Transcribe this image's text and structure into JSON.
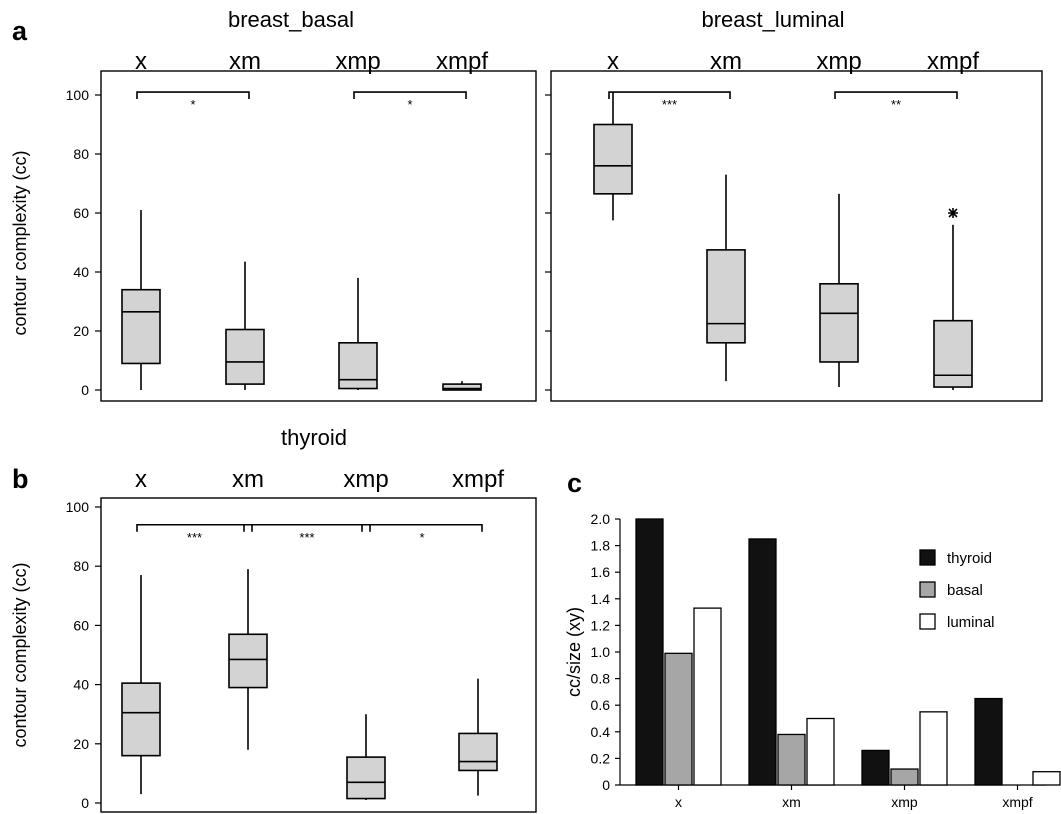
{
  "panels": {
    "a": {
      "letter": "a"
    },
    "b": {
      "letter": "b"
    },
    "c": {
      "letter": "c"
    }
  },
  "chart_data": [
    {
      "type": "box",
      "panel": "a",
      "title": "breast_basal",
      "categories": [
        "x",
        "xm",
        "xmp",
        "xmpf"
      ],
      "ylabel": "contour complexity (cc)",
      "ylim": [
        0,
        100
      ],
      "yticks": [
        0,
        20,
        40,
        60,
        80,
        100
      ],
      "boxes": [
        {
          "min": 0,
          "q1": 9,
          "median": 26.5,
          "q3": 34,
          "max": 61,
          "outliers": []
        },
        {
          "min": 0,
          "q1": 2,
          "median": 9.5,
          "q3": 20.5,
          "max": 43.5,
          "outliers": []
        },
        {
          "min": 0,
          "q1": 0.5,
          "median": 3.5,
          "q3": 16,
          "max": 38,
          "outliers": []
        },
        {
          "min": 0,
          "q1": 0,
          "median": 0.5,
          "q3": 2,
          "max": 3,
          "outliers": []
        }
      ],
      "significance": [
        {
          "from": 0,
          "to": 1,
          "y": 101,
          "label": "*"
        },
        {
          "from": 2,
          "to": 3,
          "y": 101,
          "label": "*"
        }
      ]
    },
    {
      "type": "box",
      "panel": "a",
      "title": "breast_luminal",
      "categories": [
        "x",
        "xm",
        "xmp",
        "xmpf"
      ],
      "ylabel": "",
      "ylim": [
        0,
        100
      ],
      "yticks": [
        0,
        20,
        40,
        60,
        80,
        100
      ],
      "boxes": [
        {
          "min": 57.5,
          "q1": 66.5,
          "median": 76,
          "q3": 90,
          "max": 101,
          "outliers": []
        },
        {
          "min": 3,
          "q1": 16,
          "median": 22.5,
          "q3": 47.5,
          "max": 73,
          "outliers": []
        },
        {
          "min": 1,
          "q1": 9.5,
          "median": 26,
          "q3": 36,
          "max": 66.5,
          "outliers": []
        },
        {
          "min": 0,
          "q1": 1,
          "median": 5,
          "q3": 23.5,
          "max": 56,
          "outliers": [
            60
          ]
        }
      ],
      "significance": [
        {
          "from": 0,
          "to": 1,
          "y": 101,
          "label": "***"
        },
        {
          "from": 2,
          "to": 3,
          "y": 101,
          "label": "**"
        }
      ]
    },
    {
      "type": "box",
      "panel": "b",
      "title": "thyroid",
      "categories": [
        "x",
        "xm",
        "xmp",
        "xmpf"
      ],
      "ylabel": "contour complexity (cc)",
      "ylim": [
        0,
        100
      ],
      "yticks": [
        0,
        20,
        40,
        60,
        80,
        100
      ],
      "boxes": [
        {
          "min": 3,
          "q1": 16,
          "median": 30.5,
          "q3": 40.5,
          "max": 77,
          "outliers": []
        },
        {
          "min": 18,
          "q1": 39,
          "median": 48.5,
          "q3": 57,
          "max": 79,
          "outliers": []
        },
        {
          "min": 1,
          "q1": 1.5,
          "median": 7,
          "q3": 15.5,
          "max": 30,
          "outliers": []
        },
        {
          "min": 2.5,
          "q1": 11,
          "median": 14,
          "q3": 23.5,
          "max": 42,
          "outliers": []
        }
      ],
      "significance": [
        {
          "from": 0,
          "to": 1,
          "y": 94,
          "label": "***"
        },
        {
          "from": 1,
          "to": 2,
          "y": 94,
          "label": "***"
        },
        {
          "from": 2,
          "to": 3,
          "y": 94,
          "label": "*"
        }
      ]
    },
    {
      "type": "bar",
      "panel": "c",
      "title": "",
      "categories": [
        "x",
        "xm",
        "xmp",
        "xmpf"
      ],
      "ylabel": "cc/size (xy)",
      "ylim": [
        0,
        2.0
      ],
      "yticks": [
        "0",
        "0.2",
        "0.4",
        "0.6",
        "0.8",
        "1.0",
        "1.2",
        "1.4",
        "1.6",
        "1.8",
        "2.0"
      ],
      "legend": "right",
      "series": [
        {
          "name": "thyroid",
          "color": "#111111",
          "values": [
            2.0,
            1.85,
            0.26,
            0.65
          ]
        },
        {
          "name": "basal",
          "color": "#a6a6a6",
          "values": [
            0.99,
            0.38,
            0.12,
            0.0
          ]
        },
        {
          "name": "luminal",
          "color": "#ffffff",
          "values": [
            1.33,
            0.5,
            0.55,
            0.1
          ]
        }
      ]
    }
  ]
}
